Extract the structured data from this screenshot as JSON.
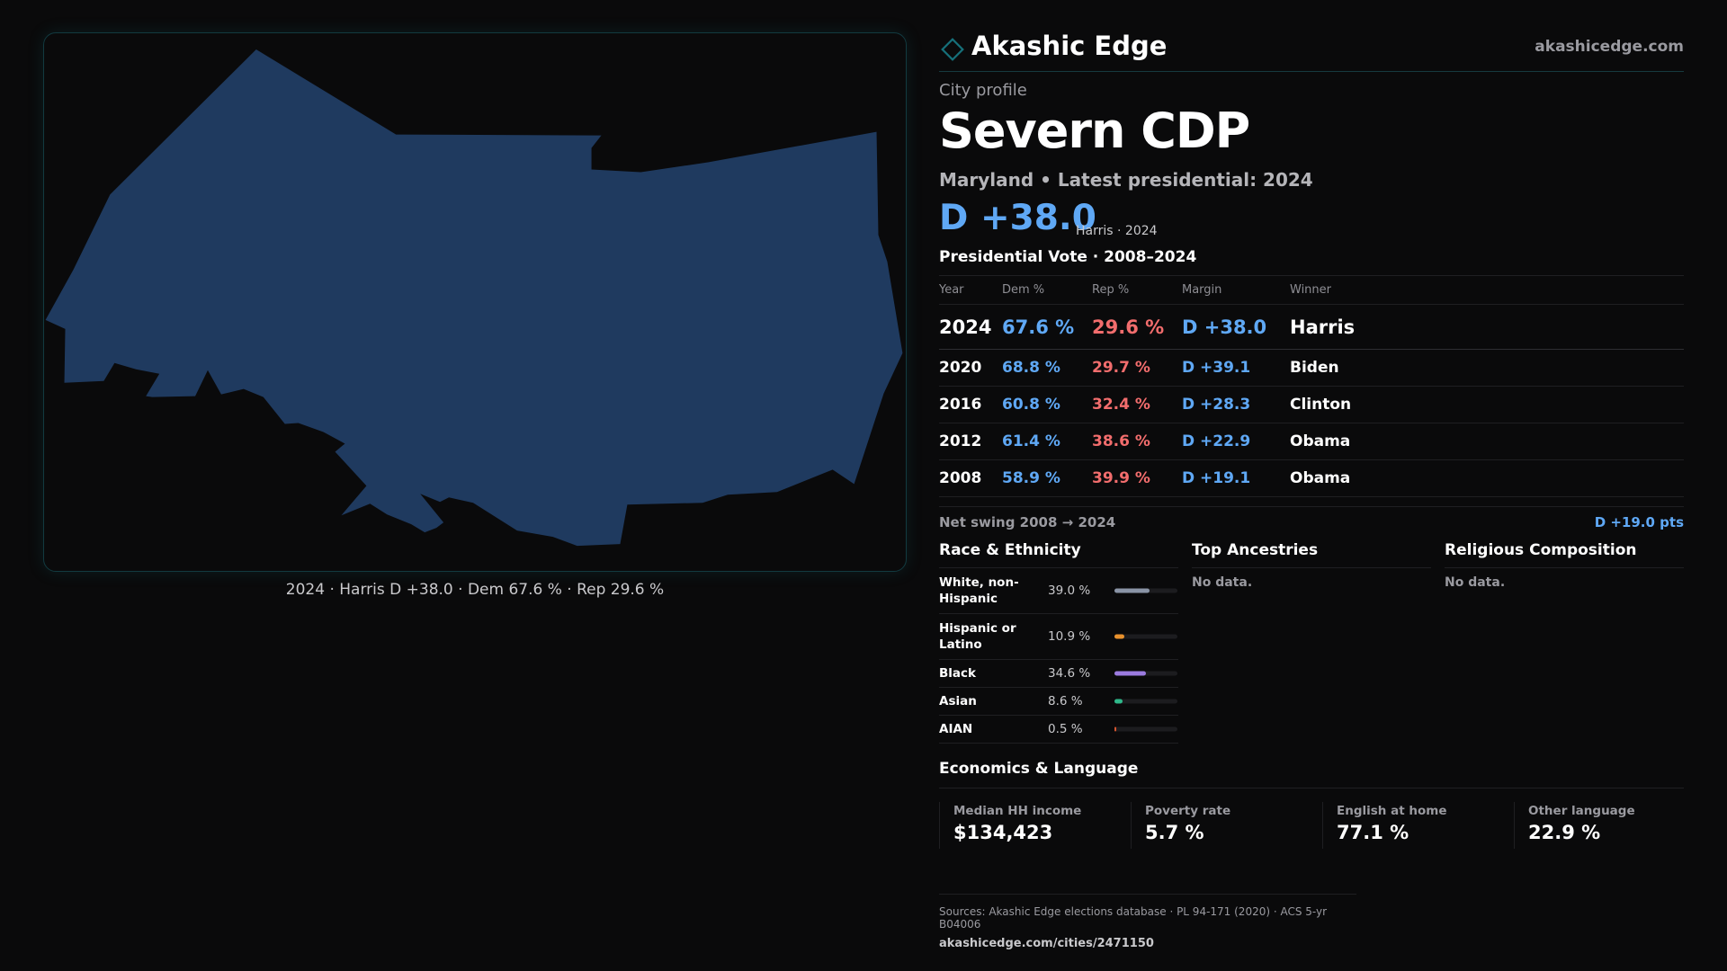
{
  "brand": {
    "name": "Akashic Edge",
    "url": "akashicedge.com"
  },
  "map": {
    "shape_color": "#1f3a5f",
    "caption": "2024 · Harris D +38.0 · Dem 67.6 % · Rep 29.6 %"
  },
  "profile": {
    "eyebrow": "City profile",
    "title": "Severn CDP",
    "subline": "Maryland • Latest presidential: 2024",
    "margin": "D +38.0",
    "margin_note": "Harris · 2024"
  },
  "vote": {
    "title": "Presidential Vote · 2008–2024",
    "headers": {
      "year": "Year",
      "dem": "Dem %",
      "rep": "Rep %",
      "margin": "Margin",
      "winner": "Winner"
    },
    "rows": [
      {
        "year": "2024",
        "dem": "67.6 %",
        "rep": "29.6 %",
        "margin": "D +38.0",
        "winner": "Harris"
      },
      {
        "year": "2020",
        "dem": "68.8 %",
        "rep": "29.7 %",
        "margin": "D +39.1",
        "winner": "Biden"
      },
      {
        "year": "2016",
        "dem": "60.8 %",
        "rep": "32.4 %",
        "margin": "D +28.3",
        "winner": "Clinton"
      },
      {
        "year": "2012",
        "dem": "61.4 %",
        "rep": "38.6 %",
        "margin": "D +22.9",
        "winner": "Obama"
      },
      {
        "year": "2008",
        "dem": "58.9 %",
        "rep": "39.9 %",
        "margin": "D +19.1",
        "winner": "Obama"
      }
    ],
    "swing_label": "Net swing 2008 → 2024",
    "swing_value": "D +19.0 pts",
    "colors": {
      "dem": "#5fa8f5",
      "rep": "#f26d6d"
    }
  },
  "race": {
    "title": "Race & Ethnicity",
    "rows": [
      {
        "label": "White, non-Hispanic",
        "pct": "39.0 %",
        "value": 39.0,
        "color": "#8a94a6"
      },
      {
        "label": "Hispanic or Latino",
        "pct": "10.9 %",
        "value": 10.9,
        "color": "#e8912d"
      },
      {
        "label": "Black",
        "pct": "34.6 %",
        "value": 34.6,
        "color": "#9b7be0"
      },
      {
        "label": "Asian",
        "pct": "8.6 %",
        "value": 8.6,
        "color": "#2fb88a"
      },
      {
        "label": "AIAN",
        "pct": "0.5 %",
        "value": 0.5,
        "color": "#d4552f"
      }
    ]
  },
  "ancestries": {
    "title": "Top Ancestries",
    "empty": "No data."
  },
  "religion": {
    "title": "Religious Composition",
    "empty": "No data."
  },
  "economics": {
    "title": "Economics & Language",
    "cells": [
      {
        "label": "Median HH income",
        "value": "$134,423"
      },
      {
        "label": "Poverty rate",
        "value": "5.7 %"
      },
      {
        "label": "English at home",
        "value": "77.1 %"
      },
      {
        "label": "Other language",
        "value": "22.9 %"
      }
    ]
  },
  "footer": {
    "sources": "Sources: Akashic Edge elections database · PL 94-171 (2020) · ACS 5-yr B04006",
    "url": "akashicedge.com/cities/2471150"
  }
}
